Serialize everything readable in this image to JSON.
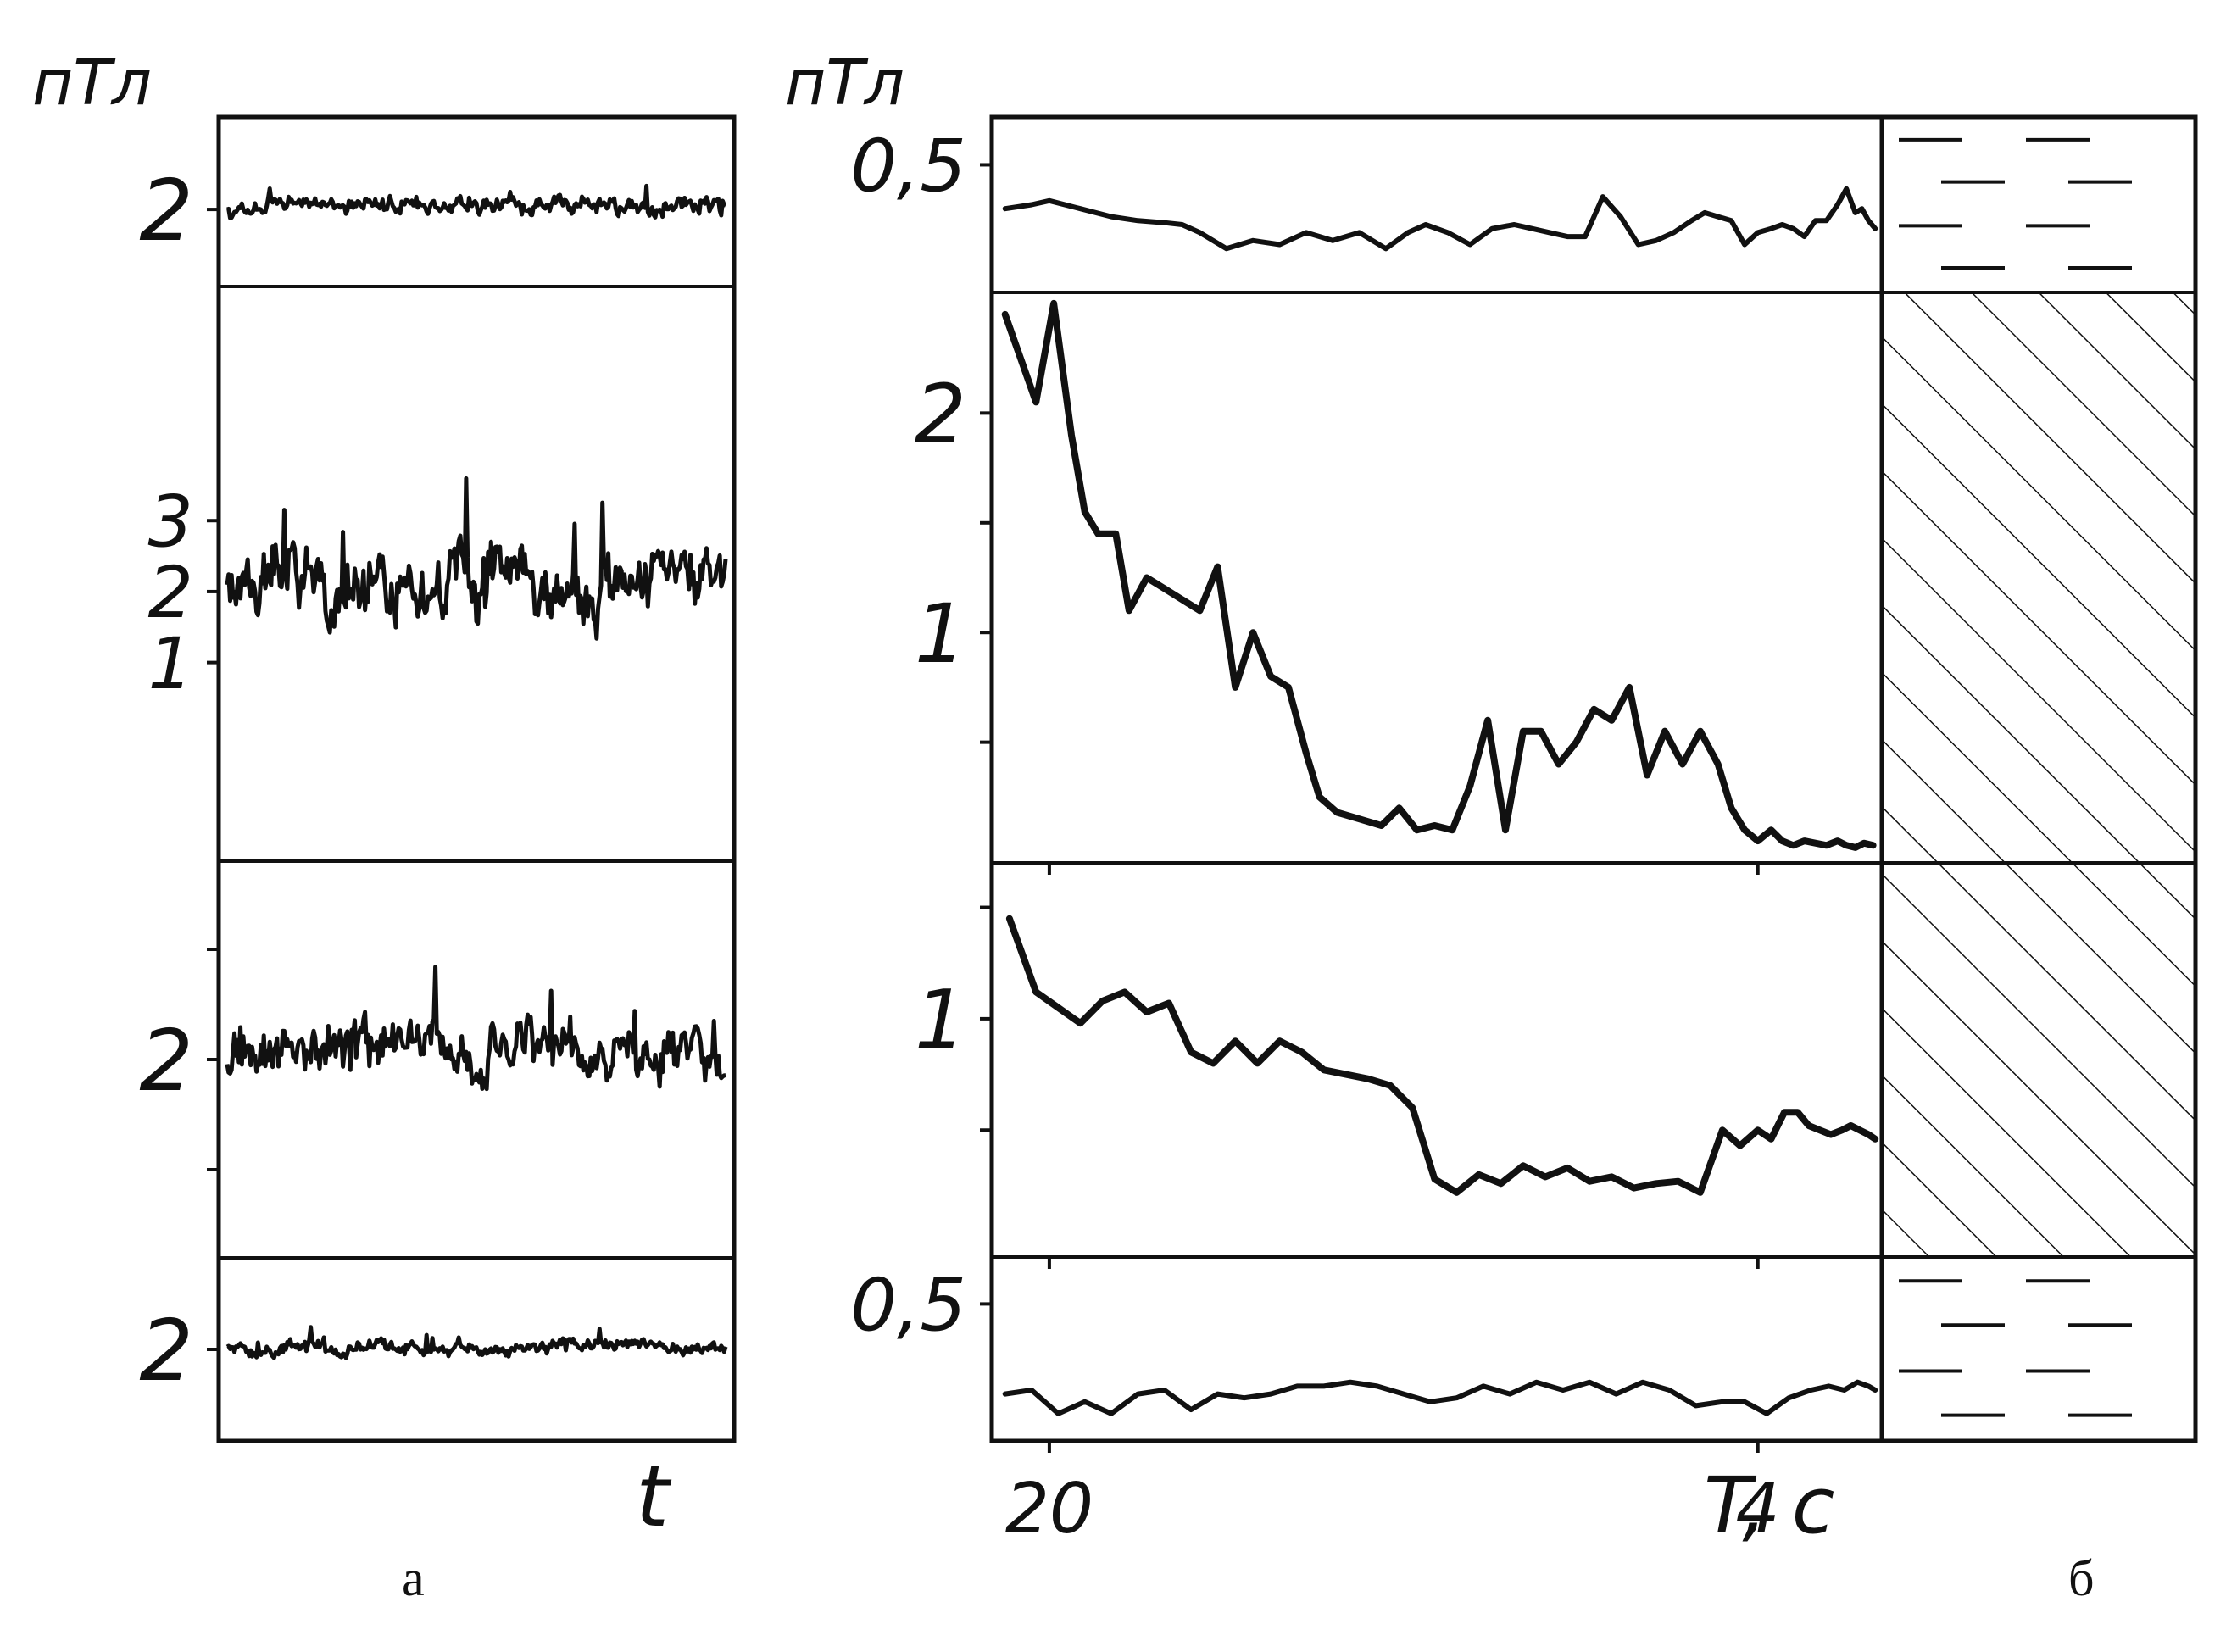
{
  "colors": {
    "ink": "#111111",
    "paper": "#ffffff"
  },
  "panel_a": {
    "unit_label": "пТл",
    "x_label": "t",
    "caption": "а",
    "rows": [
      {
        "ticks": [
          {
            "value": 2,
            "label": "2"
          }
        ],
        "ylim": [
          1.5,
          2.6
        ],
        "noise": 0.07,
        "seed": 11
      },
      {
        "ticks": [
          {
            "value": 3,
            "label": "3"
          },
          {
            "value": 2,
            "label": "2"
          },
          {
            "value": 1,
            "label": "1"
          }
        ],
        "ylim": [
          -1.8,
          6.3
        ],
        "noise": 0.55,
        "seed": 23
      },
      {
        "ticks": [
          {
            "value": 3,
            "label": ""
          },
          {
            "value": 2,
            "label": "2"
          },
          {
            "value": 1,
            "label": ""
          }
        ],
        "ylim": [
          0.2,
          3.8
        ],
        "noise": 0.28,
        "seed": 37
      },
      {
        "ticks": [
          {
            "value": 2,
            "label": "2"
          }
        ],
        "ylim": [
          1.3,
          2.7
        ],
        "noise": 0.06,
        "seed": 51
      }
    ]
  },
  "chart_data": {
    "type": "line",
    "unit_label": "пТл",
    "xlabel": "T, c",
    "caption": "б",
    "x_ticks": [
      {
        "value": 20,
        "label": "20"
      },
      {
        "value": 4,
        "label": "4"
      }
    ],
    "xlim": [
      21.3,
      1.2
    ],
    "panels": [
      {
        "y_ticks": [
          {
            "value": 0.5,
            "label": "0,5"
          }
        ],
        "ylim": [
          0.18,
          0.62
        ],
        "hatch": "dashes",
        "x": [
          21,
          20.4,
          20,
          19.3,
          18.6,
          18,
          17.4,
          17,
          16.6,
          16,
          15.4,
          14.8,
          14.2,
          13.6,
          13,
          12.4,
          11.9,
          11.5,
          11,
          10.5,
          10,
          9.5,
          9.1,
          8.7,
          8.3,
          7.9,
          7.5,
          7.1,
          6.7,
          6.3,
          5.9,
          5.5,
          5.2,
          4.9,
          4.6,
          4.3,
          4,
          3.7,
          3.45,
          3.2,
          2.95,
          2.7,
          2.45,
          2.2,
          2,
          1.8,
          1.65,
          1.5,
          1.35
        ],
        "values": [
          0.39,
          0.4,
          0.41,
          0.39,
          0.37,
          0.36,
          0.355,
          0.35,
          0.33,
          0.29,
          0.31,
          0.3,
          0.33,
          0.31,
          0.33,
          0.29,
          0.33,
          0.35,
          0.33,
          0.3,
          0.34,
          0.35,
          0.34,
          0.33,
          0.32,
          0.32,
          0.42,
          0.37,
          0.3,
          0.31,
          0.33,
          0.36,
          0.38,
          0.37,
          0.36,
          0.3,
          0.33,
          0.34,
          0.35,
          0.34,
          0.32,
          0.36,
          0.36,
          0.4,
          0.44,
          0.38,
          0.39,
          0.36,
          0.34
        ]
      },
      {
        "y_ticks": [
          {
            "value": 2,
            "label": "2"
          },
          {
            "value": 1.5,
            "label": ""
          },
          {
            "value": 1,
            "label": "1"
          },
          {
            "value": 0.5,
            "label": ""
          }
        ],
        "ylim": [
          -0.05,
          2.55
        ],
        "hatch": "diagonal",
        "x": [
          21,
          20.3,
          19.9,
          19.5,
          19.2,
          18.9,
          18.5,
          18.2,
          17.8,
          17.4,
          17,
          16.6,
          16.2,
          15.8,
          15.4,
          15,
          14.6,
          14.2,
          13.9,
          13.5,
          13,
          12.5,
          12.1,
          11.7,
          11.3,
          10.9,
          10.5,
          10.1,
          9.7,
          9.3,
          8.9,
          8.5,
          8.1,
          7.7,
          7.3,
          6.9,
          6.5,
          6.1,
          5.7,
          5.3,
          4.9,
          4.6,
          4.3,
          4,
          3.7,
          3.45,
          3.2,
          2.95,
          2.7,
          2.45,
          2.2,
          2,
          1.8,
          1.6,
          1.4
        ],
        "values": [
          2.45,
          2.05,
          2.5,
          1.9,
          1.55,
          1.45,
          1.45,
          1.1,
          1.25,
          1.2,
          1.15,
          1.1,
          1.3,
          0.75,
          1.0,
          0.8,
          0.75,
          0.45,
          0.25,
          0.18,
          0.15,
          0.12,
          0.2,
          0.1,
          0.12,
          0.1,
          0.3,
          0.6,
          0.1,
          0.55,
          0.55,
          0.4,
          0.5,
          0.65,
          0.6,
          0.75,
          0.35,
          0.55,
          0.4,
          0.55,
          0.4,
          0.2,
          0.1,
          0.05,
          0.1,
          0.05,
          0.03,
          0.05,
          0.04,
          0.03,
          0.05,
          0.03,
          0.02,
          0.04,
          0.03
        ]
      },
      {
        "y_ticks": [
          {
            "value": 1.5,
            "label": ""
          },
          {
            "value": 1,
            "label": "1"
          },
          {
            "value": 0.5,
            "label": ""
          }
        ],
        "ylim": [
          -0.07,
          1.7
        ],
        "hatch": "diagonal",
        "x": [
          20.9,
          20.3,
          19.8,
          19.3,
          18.8,
          18.3,
          17.8,
          17.3,
          16.8,
          16.3,
          15.8,
          15.3,
          14.8,
          14.3,
          13.8,
          13.3,
          12.8,
          12.3,
          11.8,
          11.3,
          10.8,
          10.3,
          9.8,
          9.3,
          8.8,
          8.3,
          7.8,
          7.3,
          6.8,
          6.3,
          5.8,
          5.3,
          4.8,
          4.4,
          4,
          3.7,
          3.4,
          3.1,
          2.85,
          2.6,
          2.35,
          2.1,
          1.9,
          1.7,
          1.5,
          1.35
        ],
        "values": [
          1.45,
          1.12,
          1.05,
          0.98,
          1.08,
          1.12,
          1.03,
          1.07,
          0.85,
          0.8,
          0.9,
          0.8,
          0.9,
          0.85,
          0.77,
          0.75,
          0.73,
          0.7,
          0.6,
          0.28,
          0.22,
          0.3,
          0.26,
          0.34,
          0.29,
          0.33,
          0.27,
          0.29,
          0.24,
          0.26,
          0.27,
          0.22,
          0.5,
          0.43,
          0.5,
          0.46,
          0.58,
          0.58,
          0.52,
          0.5,
          0.48,
          0.5,
          0.52,
          0.5,
          0.48,
          0.46
        ]
      },
      {
        "y_ticks": [
          {
            "value": 0.5,
            "label": "0,5"
          }
        ],
        "ylim": [
          0.15,
          0.62
        ],
        "hatch": "dashes",
        "x": [
          21,
          20.4,
          19.8,
          19.2,
          18.6,
          18,
          17.4,
          16.8,
          16.2,
          15.6,
          15,
          14.4,
          13.8,
          13.2,
          12.6,
          12,
          11.4,
          10.8,
          10.2,
          9.6,
          9,
          8.4,
          7.8,
          7.2,
          6.6,
          6,
          5.4,
          4.8,
          4.3,
          3.8,
          3.3,
          2.8,
          2.4,
          2.05,
          1.75,
          1.5,
          1.35
        ],
        "values": [
          0.27,
          0.28,
          0.22,
          0.25,
          0.22,
          0.27,
          0.28,
          0.23,
          0.27,
          0.26,
          0.27,
          0.29,
          0.29,
          0.3,
          0.29,
          0.27,
          0.25,
          0.26,
          0.29,
          0.27,
          0.3,
          0.28,
          0.3,
          0.27,
          0.3,
          0.28,
          0.24,
          0.25,
          0.25,
          0.22,
          0.26,
          0.28,
          0.29,
          0.28,
          0.3,
          0.29,
          0.28
        ]
      }
    ]
  }
}
